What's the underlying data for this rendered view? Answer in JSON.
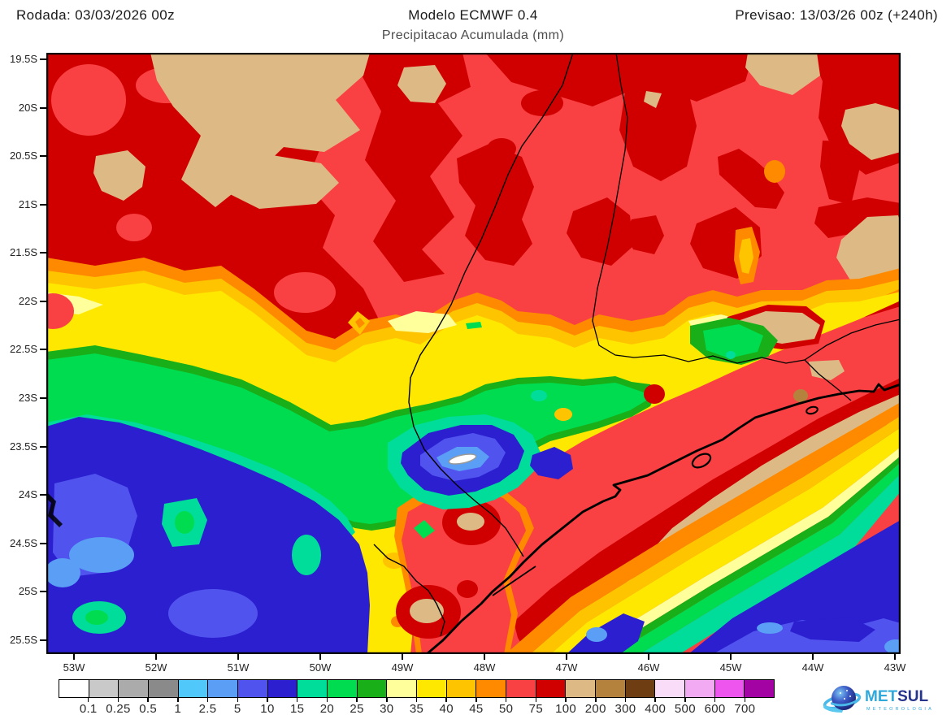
{
  "header": {
    "run": "Rodada: 03/03/2026 00z",
    "model": "Modelo ECMWF 0.4",
    "variable": "Precipitacao Acumulada (mm)",
    "forecast": "Previsao: 13/03/26 00z (+240h)"
  },
  "axes": {
    "lat_labels": [
      "19.5S",
      "20S",
      "20.5S",
      "21S",
      "21.5S",
      "22S",
      "22.5S",
      "23S",
      "23.5S",
      "24S",
      "24.5S",
      "25S",
      "25.5S"
    ],
    "lon_labels": [
      "53W",
      "52W",
      "51W",
      "50W",
      "49W",
      "48W",
      "47W",
      "46W",
      "45W",
      "44W",
      "43W"
    ]
  },
  "colorbar": {
    "labels": [
      "0.1",
      "0.25",
      "0.5",
      "1",
      "2.5",
      "5",
      "10",
      "15",
      "20",
      "25",
      "30",
      "35",
      "40",
      "45",
      "50",
      "75",
      "100",
      "200",
      "300",
      "400",
      "500",
      "600",
      "700"
    ],
    "colors": [
      "#FFFFFF",
      "#C9C9C9",
      "#ABABAB",
      "#8A8A8A",
      "#50C8FA",
      "#5A9EF5",
      "#5153EE",
      "#2B1FD0",
      "#00DC9A",
      "#00DC50",
      "#18AF18",
      "#FFFF9C",
      "#FFE800",
      "#FFC400",
      "#FF8A00",
      "#F94043",
      "#D10000",
      "#DDBA85",
      "#B5823D",
      "#6F3D12",
      "#F8DCF8",
      "#F2AAF2",
      "#EE55EE",
      "#A303A3"
    ]
  },
  "logo": {
    "met": "MET",
    "sul": "SUL",
    "tagline": "METEOROLOGIA"
  },
  "chart_data": {
    "type": "heatmap",
    "title": "Modelo ECMWF 0.4 — Precipitacao Acumulada (mm)",
    "run": "03/03/2026 00z",
    "valid": "13/03/26 00z (+240h)",
    "units": "mm",
    "lat_range": [
      "19.5S",
      "25.5S"
    ],
    "lon_range": [
      "53W",
      "43W"
    ],
    "scale_levels_mm": [
      0.1,
      0.25,
      0.5,
      1,
      2.5,
      5,
      10,
      15,
      20,
      25,
      30,
      35,
      40,
      45,
      50,
      75,
      100,
      200,
      300,
      400,
      500,
      600,
      700
    ],
    "legend_position": "bottom",
    "notes": "Filled precipitation contours: 50-100+ mm (reds/tan) over northern interior; 100-200 mm (tan) band along Serra do Mar coast; dry pockets 1-15 mm (blues) in southwest and far southeast"
  }
}
